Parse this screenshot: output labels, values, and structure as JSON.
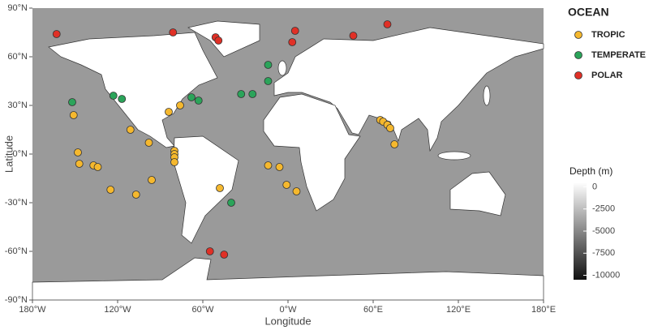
{
  "chart_data": {
    "type": "scatter",
    "xlabel": "Longitude",
    "ylabel": "Latitude",
    "xlim": [
      -180,
      180
    ],
    "ylim": [
      -90,
      90
    ],
    "xticks": [
      {
        "value": -180,
        "label": "180°W"
      },
      {
        "value": -120,
        "label": "120°W"
      },
      {
        "value": -60,
        "label": "60°W"
      },
      {
        "value": 0,
        "label": "0°W"
      },
      {
        "value": 60,
        "label": "60°E"
      },
      {
        "value": 120,
        "label": "120°E"
      },
      {
        "value": 180,
        "label": "180°E"
      }
    ],
    "yticks": [
      {
        "value": 90,
        "label": "90°N"
      },
      {
        "value": 60,
        "label": "60°N"
      },
      {
        "value": 30,
        "label": "30°N"
      },
      {
        "value": 0,
        "label": "0°N"
      },
      {
        "value": -30,
        "label": "-30°N"
      },
      {
        "value": -60,
        "label": "-60°N"
      },
      {
        "value": -90,
        "label": "-90°N"
      }
    ],
    "legend_title": "OCEAN",
    "series": [
      {
        "name": "TROPIC",
        "color": "#f5b82e",
        "x": [
          -151,
          -148,
          -147,
          -137,
          -134,
          -111,
          -98,
          -84,
          -76,
          -80,
          -80,
          -80,
          -80,
          -96,
          -107,
          -125,
          -48,
          -14,
          -6,
          -1,
          6,
          65,
          67,
          70,
          72,
          75
        ],
        "values": [
          24,
          1,
          -6,
          -7,
          -8,
          15,
          7,
          26,
          30,
          2,
          0,
          -2,
          -5,
          -16,
          -25,
          -22,
          -21,
          -7,
          -8,
          -19,
          -23,
          21,
          20,
          18,
          16,
          6
        ]
      },
      {
        "name": "TEMPERATE",
        "color": "#2ba45a",
        "x": [
          -152,
          -123,
          -117,
          -68,
          -63,
          -33,
          -25,
          -14,
          -14,
          -40
        ],
        "values": [
          32,
          36,
          34,
          35,
          33,
          37,
          37,
          55,
          45,
          -30
        ]
      },
      {
        "name": "POLAR",
        "color": "#e03026",
        "x": [
          -163,
          -81,
          -51,
          -49,
          5,
          3,
          46,
          70,
          -55,
          -45
        ],
        "values": [
          74,
          75,
          72,
          70,
          76,
          69,
          73,
          80,
          -60,
          -62
        ]
      }
    ],
    "colorbar": {
      "title": "Depth (m)",
      "lim": [
        -10500,
        500
      ],
      "ticks": [
        0,
        -2500,
        -5000,
        -7500,
        -10000
      ]
    }
  }
}
